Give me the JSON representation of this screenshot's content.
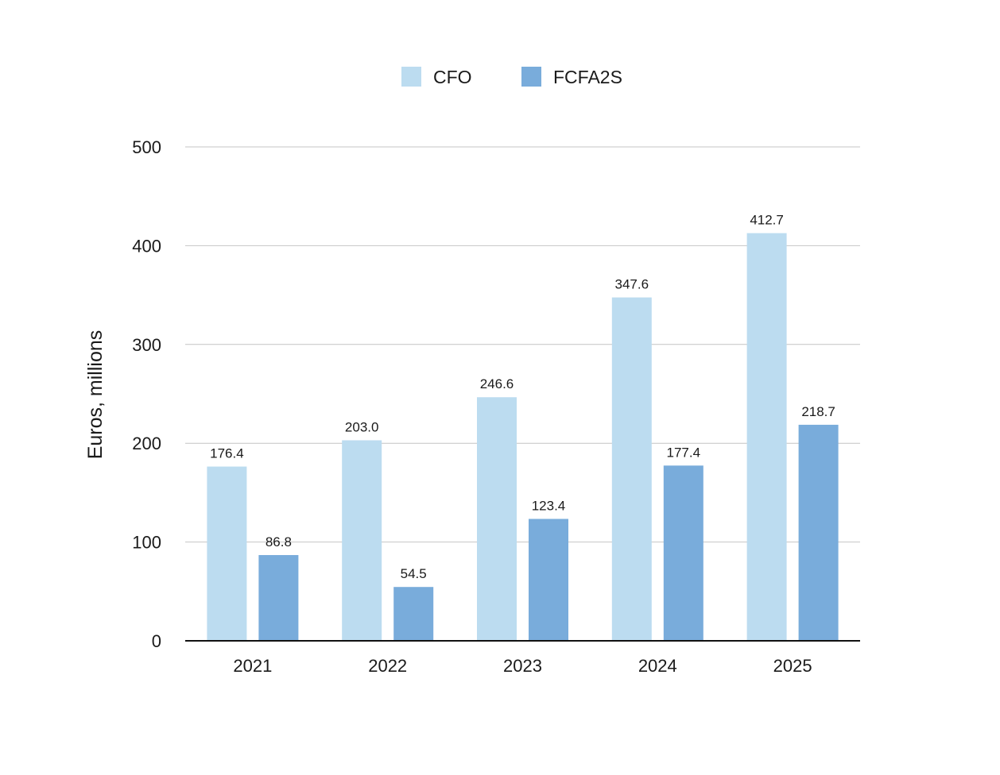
{
  "chart_data": {
    "type": "bar",
    "title": "",
    "xlabel": "",
    "ylabel": "Euros, millions",
    "categories": [
      "2021",
      "2022",
      "2023",
      "2024",
      "2025"
    ],
    "series": [
      {
        "name": "CFO",
        "color": "#bcdcf0",
        "values": [
          176.4,
          203.0,
          246.6,
          347.6,
          412.7
        ],
        "labels": [
          "176.4",
          "203.0",
          "246.6",
          "347.6",
          "412.7"
        ]
      },
      {
        "name": "FCFA2S",
        "color": "#79acdb",
        "values": [
          86.8,
          54.5,
          123.4,
          177.4,
          218.7
        ],
        "labels": [
          "86.8",
          "54.5",
          "123.4",
          "177.4",
          "218.7"
        ]
      }
    ],
    "ylim": [
      0,
      500
    ],
    "yticks": [
      0,
      100,
      200,
      300,
      400,
      500
    ],
    "grid": true,
    "legend": "top-center"
  }
}
